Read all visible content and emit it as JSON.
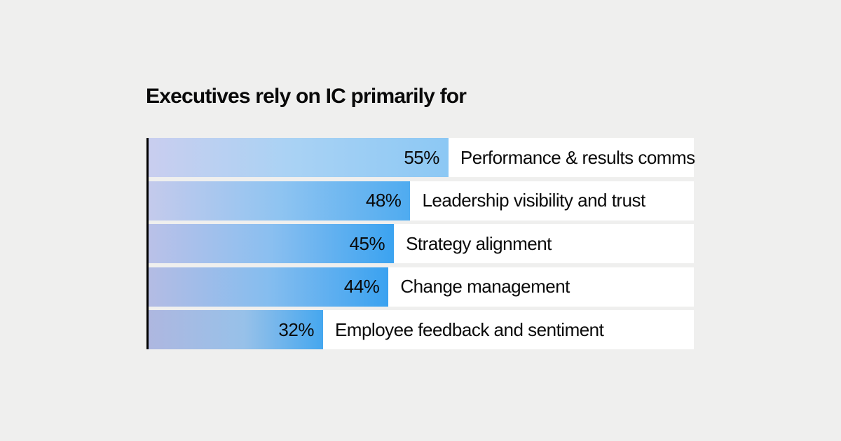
{
  "chart_data": {
    "type": "bar",
    "orientation": "horizontal",
    "title": "Executives rely on IC primarily for",
    "categories": [
      "Performance & results comms",
      "Leadership visibility and trust",
      "Strategy alignment",
      "Change management",
      "Employee feedback and sentiment"
    ],
    "values": [
      55,
      48,
      45,
      44,
      32
    ],
    "value_labels": [
      "55%",
      "48%",
      "45%",
      "44%",
      "32%"
    ],
    "xlim": [
      0,
      100
    ],
    "grid": false,
    "legend": false,
    "value_label_position": "inside-end",
    "category_label_position": "right-of-bar"
  },
  "style": {
    "page_background": "#efefee",
    "row_background": "#ffffff",
    "axis_line_color": "#000000",
    "text_color": "#0a0a0a",
    "bar_gradients": [
      {
        "start": "#c9ceef",
        "mid": "#a9d2f4",
        "end": "#8cc8f4",
        "mid_stop": 48
      },
      {
        "start": "#c4caec",
        "mid": "#8fc4f1",
        "end": "#4fabf0",
        "mid_stop": 50
      },
      {
        "start": "#bac1e8",
        "mid": "#8abff0",
        "end": "#3ba3f0",
        "mid_stop": 50
      },
      {
        "start": "#b4bce4",
        "mid": "#85bdef",
        "end": "#3aa2f0",
        "mid_stop": 50
      },
      {
        "start": "#aeb7e0",
        "mid": "#97c1e9",
        "end": "#45a7ef",
        "mid_stop": 55
      }
    ]
  }
}
